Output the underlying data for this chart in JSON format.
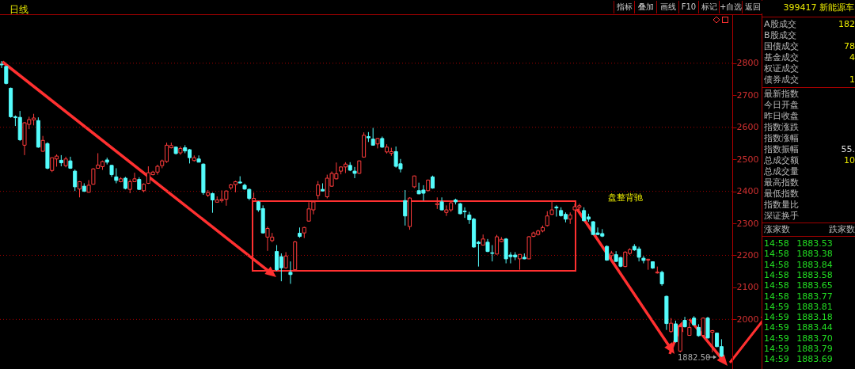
{
  "chart_data": [
    {
      "type": "candlestick",
      "annotations": [
        "日线",
        "盘整背驰",
        "1882.50",
        "指标",
        "叠加",
        "画线",
        "F10",
        "标记",
        "+自选",
        "返回"
      ],
      "categories": [
        null,
        null,
        null,
        null,
        null,
        null,
        null,
        null,
        null,
        null,
        null,
        null,
        null,
        null,
        null,
        null,
        null,
        null,
        null,
        null,
        null,
        null,
        null,
        null,
        null,
        null,
        null,
        null,
        null,
        null,
        null,
        null,
        null,
        null,
        null,
        null,
        null,
        null,
        null,
        null,
        null,
        null,
        null,
        null,
        null,
        null,
        null,
        null,
        null,
        null,
        null,
        null,
        null,
        null,
        null,
        null,
        null,
        null,
        null,
        null,
        null,
        null,
        null,
        null,
        null,
        null,
        null,
        null,
        null,
        null,
        null,
        null,
        null,
        null,
        null,
        null,
        null,
        null,
        null,
        null,
        null,
        null,
        null,
        null,
        null,
        null,
        null,
        null,
        null,
        null,
        null,
        null,
        null,
        null,
        null,
        null,
        null,
        null,
        null,
        null,
        null,
        null,
        null,
        null,
        null,
        null,
        null,
        null,
        null,
        null,
        null,
        null,
        null,
        null,
        null,
        null,
        null,
        null,
        null,
        null,
        null,
        null,
        null,
        null,
        null,
        null,
        null,
        null,
        null,
        null,
        null,
        null,
        null,
        null,
        null,
        null,
        null,
        null,
        null,
        null,
        null,
        null,
        null,
        null,
        null,
        null,
        null,
        null,
        null,
        null,
        null,
        null,
        null,
        null,
        null,
        null,
        null,
        null
      ],
      "ohlc": [
        [
          2797,
          2807,
          2785,
          2795
        ],
        [
          2790,
          2792,
          2734,
          2737
        ],
        [
          2722,
          2724,
          2630,
          2633
        ],
        [
          2633,
          2637,
          2604,
          2630
        ],
        [
          2631,
          2651,
          2557,
          2561
        ],
        [
          2544,
          2616,
          2513,
          2614
        ],
        [
          2609,
          2633,
          2594,
          2624
        ],
        [
          2623,
          2642,
          2606,
          2629
        ],
        [
          2621,
          2631,
          2536,
          2538
        ],
        [
          2525,
          2573,
          2524,
          2559
        ],
        [
          2549,
          2553,
          2469,
          2472
        ],
        [
          2465,
          2505,
          2460,
          2505
        ],
        [
          2501,
          2515,
          2477,
          2510
        ],
        [
          2497,
          2513,
          2478,
          2489
        ],
        [
          2480,
          2508,
          2475,
          2501
        ],
        [
          2495,
          2508,
          2470,
          2472
        ],
        [
          2463,
          2468,
          2401,
          2414
        ],
        [
          2407,
          2432,
          2381,
          2430
        ],
        [
          2416,
          2425,
          2398,
          2400
        ],
        [
          2397,
          2435,
          2396,
          2419
        ],
        [
          2422,
          2472,
          2421,
          2470
        ],
        [
          2472,
          2519,
          2471,
          2482
        ],
        [
          2477,
          2496,
          2467,
          2493
        ],
        [
          2498,
          2505,
          2484,
          2491
        ],
        [
          2481,
          2483,
          2445,
          2452
        ],
        [
          2445,
          2472,
          2425,
          2434
        ],
        [
          2430,
          2444,
          2428,
          2439
        ],
        [
          2441,
          2445,
          2406,
          2409
        ],
        [
          2406,
          2437,
          2394,
          2430
        ],
        [
          2430,
          2458,
          2429,
          2439
        ],
        [
          2437,
          2444,
          2404,
          2406
        ],
        [
          2402,
          2425,
          2397,
          2422
        ],
        [
          2425,
          2478,
          2423,
          2458
        ],
        [
          2452,
          2464,
          2450,
          2460
        ],
        [
          2460,
          2483,
          2452,
          2478
        ],
        [
          2480,
          2499,
          2472,
          2495
        ],
        [
          2493,
          2552,
          2489,
          2544
        ],
        [
          2536,
          2552,
          2534,
          2543
        ],
        [
          2538,
          2540,
          2515,
          2518
        ],
        [
          2520,
          2540,
          2514,
          2534
        ],
        [
          2536,
          2544,
          2519,
          2526
        ],
        [
          2530,
          2532,
          2487,
          2505
        ],
        [
          2496,
          2512,
          2493,
          2505
        ],
        [
          2501,
          2512,
          2491,
          2491
        ],
        [
          2485,
          2487,
          2389,
          2396
        ],
        [
          2388,
          2404,
          2382,
          2396
        ],
        [
          2393,
          2396,
          2333,
          2373
        ],
        [
          2366,
          2384,
          2365,
          2373
        ],
        [
          2371,
          2403,
          2365,
          2375
        ],
        [
          2375,
          2403,
          2355,
          2401
        ],
        [
          2411,
          2423,
          2405,
          2420
        ],
        [
          2421,
          2433,
          2397,
          2430
        ],
        [
          2429,
          2447,
          2424,
          2426
        ],
        [
          2419,
          2424,
          2405,
          2407
        ],
        [
          2406,
          2409,
          2372,
          2378
        ],
        [
          2371,
          2396,
          2369,
          2378
        ],
        [
          2367,
          2369,
          2336,
          2342
        ],
        [
          2346,
          2356,
          2268,
          2270
        ],
        [
          2257,
          2290,
          2214,
          2284
        ],
        [
          2246,
          2270,
          2241,
          2257
        ],
        [
          2212,
          2232,
          2152,
          2155
        ],
        [
          2196,
          2206,
          2119,
          2161
        ],
        [
          2161,
          2210,
          2158,
          2198
        ],
        [
          2147,
          2181,
          2111,
          2140
        ],
        [
          2155,
          2245,
          2153,
          2242
        ],
        [
          2269,
          2287,
          2255,
          2259
        ],
        [
          2270,
          2289,
          2254,
          2287
        ],
        [
          2307,
          2366,
          2305,
          2345
        ],
        [
          2342,
          2369,
          2328,
          2367
        ],
        [
          2387,
          2432,
          2375,
          2420
        ],
        [
          2406,
          2425,
          2400,
          2401
        ],
        [
          2383,
          2452,
          2378,
          2441
        ],
        [
          2416,
          2462,
          2414,
          2456
        ],
        [
          2439,
          2490,
          2437,
          2455
        ],
        [
          2463,
          2478,
          2453,
          2476
        ],
        [
          2476,
          2491,
          2457,
          2485
        ],
        [
          2481,
          2491,
          2463,
          2466
        ],
        [
          2463,
          2476,
          2441,
          2456
        ],
        [
          2456,
          2496,
          2455,
          2495
        ],
        [
          2507,
          2584,
          2505,
          2575
        ],
        [
          2571,
          2585,
          2554,
          2567
        ],
        [
          2563,
          2598,
          2543,
          2544
        ],
        [
          2548,
          2567,
          2534,
          2565
        ],
        [
          2565,
          2571,
          2536,
          2538
        ],
        [
          2523,
          2547,
          2518,
          2538
        ],
        [
          2519,
          2536,
          2511,
          2524
        ],
        [
          2524,
          2540,
          2474,
          2478
        ],
        [
          2486,
          2501,
          2459,
          2470
        ],
        [
          2371,
          2404,
          2293,
          2323
        ],
        [
          2290,
          2381,
          2280,
          2379
        ],
        [
          2414,
          2449,
          2410,
          2448
        ],
        [
          2402,
          2427,
          2391,
          2392
        ],
        [
          2404,
          2419,
          2371,
          2394
        ],
        [
          2402,
          2437,
          2400,
          2435
        ],
        [
          2445,
          2449,
          2408,
          2410
        ],
        [
          2358,
          2381,
          2345,
          2362
        ],
        [
          2367,
          2381,
          2340,
          2342
        ],
        [
          2334,
          2356,
          2323,
          2342
        ],
        [
          2342,
          2367,
          2336,
          2364
        ],
        [
          2373,
          2377,
          2359,
          2367
        ],
        [
          2361,
          2364,
          2328,
          2330
        ],
        [
          2338,
          2350,
          2317,
          2336
        ],
        [
          2326,
          2336,
          2298,
          2311
        ],
        [
          2313,
          2317,
          2224,
          2226
        ],
        [
          2241,
          2245,
          2165,
          2237
        ],
        [
          2232,
          2265,
          2231,
          2251
        ],
        [
          2241,
          2251,
          2210,
          2212
        ],
        [
          2208,
          2232,
          2181,
          2206
        ],
        [
          2204,
          2264,
          2203,
          2258
        ],
        [
          2243,
          2257,
          2241,
          2250
        ],
        [
          2251,
          2254,
          2175,
          2189
        ],
        [
          2201,
          2210,
          2175,
          2196
        ],
        [
          2201,
          2210,
          2185,
          2195
        ],
        [
          2189,
          2203,
          2155,
          2203
        ],
        [
          2194,
          2206,
          2188,
          2189
        ],
        [
          2189,
          2260,
          2188,
          2258
        ],
        [
          2259,
          2274,
          2257,
          2270
        ],
        [
          2265,
          2280,
          2262,
          2276
        ],
        [
          2276,
          2293,
          2272,
          2287
        ],
        [
          2293,
          2338,
          2290,
          2323
        ],
        [
          2328,
          2367,
          2326,
          2342
        ],
        [
          2351,
          2356,
          2321,
          2348
        ],
        [
          2340,
          2350,
          2321,
          2324
        ],
        [
          2328,
          2334,
          2303,
          2313
        ],
        [
          2313,
          2334,
          2298,
          2326
        ],
        [
          2342,
          2361,
          2341,
          2352
        ],
        [
          2350,
          2361,
          2342,
          2355
        ],
        [
          2340,
          2350,
          2307,
          2308
        ],
        [
          2320,
          2330,
          2305,
          2313
        ],
        [
          2305,
          2307,
          2264,
          2265
        ],
        [
          2270,
          2287,
          2264,
          2265
        ],
        [
          2268,
          2282,
          2257,
          2260
        ],
        [
          2228,
          2231,
          2183,
          2185
        ],
        [
          2199,
          2214,
          2189,
          2207
        ],
        [
          2202,
          2213,
          2180,
          2181
        ],
        [
          2193,
          2196,
          2163,
          2166
        ],
        [
          2165,
          2213,
          2163,
          2210
        ],
        [
          2206,
          2222,
          2202,
          2218
        ],
        [
          2228,
          2235,
          2214,
          2217
        ],
        [
          2220,
          2227,
          2181,
          2194
        ],
        [
          2191,
          2198,
          2175,
          2184
        ],
        [
          2185,
          2189,
          2155,
          2188
        ],
        [
          2180,
          2181,
          2158,
          2160
        ],
        [
          2145,
          2165,
          2143,
          2148
        ],
        [
          2147,
          2152,
          2105,
          2111
        ],
        [
          2072,
          2074,
          1967,
          1987
        ],
        [
          1962,
          2004,
          1958,
          1988
        ],
        [
          1986,
          1996,
          1928,
          1930
        ],
        [
          1901,
          1983,
          1897,
          1977
        ],
        [
          1997,
          2008,
          1975,
          1977
        ],
        [
          1950,
          1991,
          1949,
          1975
        ],
        [
          2004,
          2010,
          1981,
          1983
        ],
        [
          1975,
          1985,
          1946,
          1949
        ],
        [
          1950,
          2006,
          1946,
          2004
        ],
        [
          2004,
          2008,
          1940,
          1942
        ],
        [
          1960,
          1967,
          1897,
          1965
        ],
        [
          1957,
          1958,
          1913,
          1915
        ],
        [
          1915,
          1938,
          1882.5,
          1885
        ]
      ],
      "ylim": [
        1845,
        2953
      ],
      "yticks": [
        2000,
        2100,
        2200,
        2300,
        2400,
        2500,
        2600,
        2700,
        2800
      ],
      "grid": "y"
    },
    {
      "type": "other",
      "title": "399417 新能源车",
      "annotations": [
        "A股成交",
        "182",
        "B股成交",
        "国债成交",
        "78",
        "基金成交",
        "4",
        "权证成交",
        "债券成交",
        "1",
        "最新指数",
        "今日开盘",
        "昨日收盘",
        "指数涨跌",
        "指数涨幅",
        "指数振幅",
        "55.",
        "总成交额",
        "10",
        "总成交量",
        "最高指数",
        "最低指数",
        "指数量比",
        "深证换手",
        "涨家数",
        "跌家数",
        "14:58 1883.53",
        "14:58 1883.38",
        "14:58 1883.84",
        "14:58 1883.58",
        "14:58 1883.65",
        "14:58 1883.77",
        "14:59 1883.81",
        "14:59 1883.18",
        "14:59 1883.44",
        "14:59 1883.70",
        "14:59 1883.79",
        "14:59 1883.69"
      ]
    }
  ]
}
